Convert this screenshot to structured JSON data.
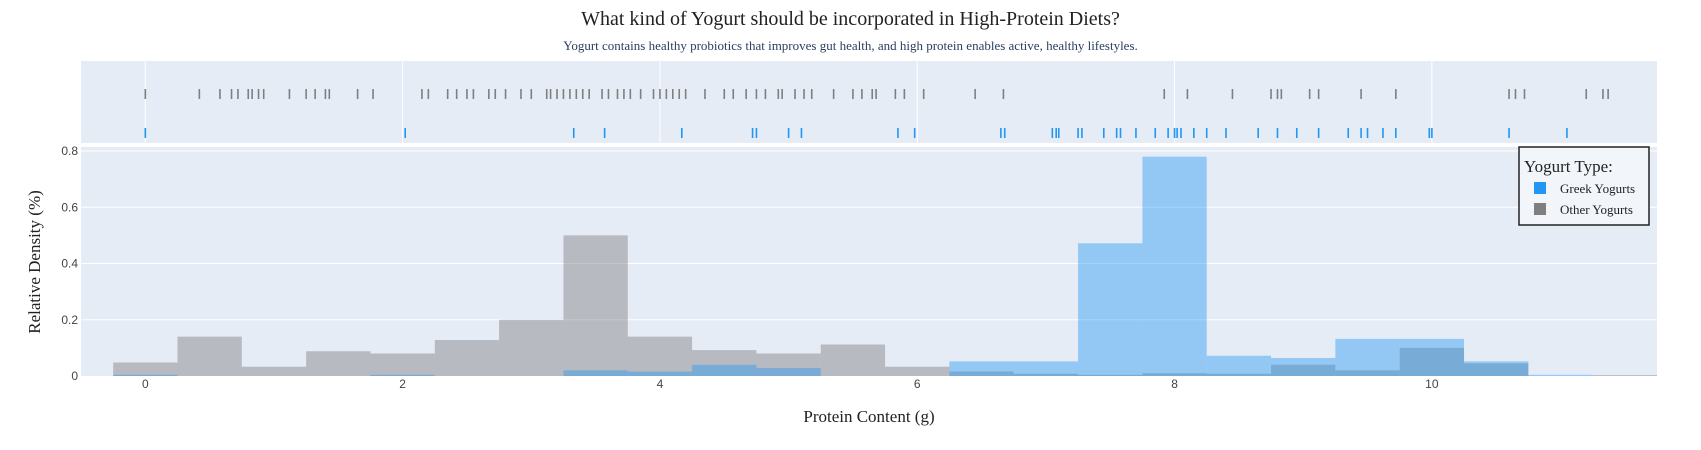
{
  "chart_data": {
    "type": "histogram-with-rug",
    "title": "What kind of Yogurt should be incorporated in High-Protein Diets?",
    "subtitle": "Yogurt contains healthy probiotics that improves gut health, and high protein enables active, healthy lifestyles.",
    "xlabel": "Protein Content (g)",
    "ylabel": "Relative Density (%)",
    "xlim": [
      -0.5,
      11.75
    ],
    "ylim": [
      0,
      0.8
    ],
    "x_ticks": [
      0,
      2,
      4,
      6,
      8,
      10
    ],
    "x_tick_labels": [
      "0",
      "2",
      "4",
      "6",
      "8",
      "10"
    ],
    "y_ticks": [
      0,
      0.2,
      0.4,
      0.6,
      0.8
    ],
    "y_tick_labels": [
      "0",
      "0.2",
      "0.4",
      "0.6",
      "0.8"
    ],
    "bin_width": 0.5,
    "bin_starts": [
      -0.25,
      0.25,
      0.75,
      1.25,
      1.75,
      2.25,
      2.75,
      3.25,
      3.75,
      4.25,
      4.75,
      5.25,
      5.75,
      6.25,
      6.75,
      7.25,
      7.75,
      8.25,
      8.75,
      9.25,
      9.75,
      10.25,
      10.75,
      11.25
    ],
    "legend": {
      "title": "Yogurt Type:",
      "placement": "top-right"
    },
    "series": [
      {
        "name": "Other Yogurts",
        "color": "#7f7f7f",
        "values": [
          0.048,
          0.14,
          0.033,
          0.088,
          0.08,
          0.128,
          0.2,
          0.5,
          0.14,
          0.092,
          0.08,
          0.112,
          0.033,
          0.016,
          0.008,
          0.004,
          0.01,
          0.008,
          0.04,
          0.02,
          0.1,
          0.045,
          0.0,
          0.003
        ],
        "rug": [
          0.0,
          0.42,
          0.58,
          0.67,
          0.72,
          0.8,
          0.83,
          0.88,
          0.92,
          1.12,
          1.25,
          1.32,
          1.4,
          1.43,
          1.65,
          1.77,
          2.15,
          2.2,
          2.35,
          2.42,
          2.5,
          2.55,
          2.67,
          2.72,
          2.8,
          2.92,
          3.0,
          3.12,
          3.15,
          3.2,
          3.25,
          3.3,
          3.35,
          3.4,
          3.45,
          3.55,
          3.6,
          3.67,
          3.72,
          3.77,
          3.85,
          3.95,
          4.0,
          4.05,
          4.1,
          4.15,
          4.2,
          4.35,
          4.5,
          4.57,
          4.67,
          4.75,
          4.82,
          4.92,
          4.95,
          5.05,
          5.12,
          5.18,
          5.35,
          5.5,
          5.57,
          5.65,
          5.68,
          5.83,
          5.9,
          6.05,
          6.45,
          6.67,
          7.92,
          8.1,
          8.45,
          8.75,
          8.8,
          8.83,
          9.05,
          9.12,
          9.45,
          9.72,
          10.6,
          10.65,
          10.72,
          11.2,
          11.33,
          11.37
        ]
      },
      {
        "name": "Greek Yogurts",
        "color": "#2196f3",
        "values": [
          0.004,
          0.0,
          0.0,
          0.0,
          0.004,
          0.0,
          0.0,
          0.02,
          0.016,
          0.04,
          0.028,
          0.0,
          0.0,
          0.052,
          0.052,
          0.472,
          0.78,
          0.072,
          0.064,
          0.132,
          0.132,
          0.052,
          0.004,
          0.0
        ],
        "rug": [
          0.0,
          2.02,
          3.33,
          3.57,
          4.17,
          4.72,
          4.75,
          5.0,
          5.1,
          5.85,
          5.98,
          6.65,
          6.68,
          7.05,
          7.08,
          7.1,
          7.25,
          7.28,
          7.45,
          7.55,
          7.58,
          7.7,
          7.85,
          7.95,
          8.0,
          8.02,
          8.05,
          8.15,
          8.25,
          8.4,
          8.65,
          8.8,
          8.95,
          9.12,
          9.35,
          9.45,
          9.5,
          9.62,
          9.72,
          9.98,
          10.0,
          10.6,
          11.05
        ]
      }
    ],
    "grid": true
  }
}
